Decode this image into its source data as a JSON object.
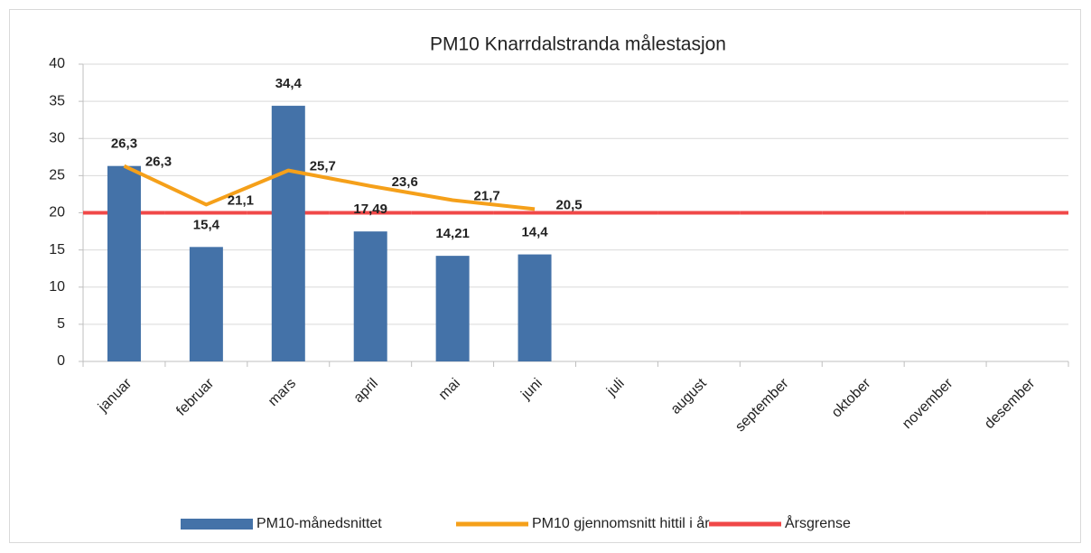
{
  "chart_data": {
    "type": "combo",
    "title": "PM10 Knarrdalstranda målestasjon",
    "categories": [
      "januar",
      "februar",
      "mars",
      "april",
      "mai",
      "juni",
      "juli",
      "august",
      "september",
      "oktober",
      "november",
      "desember"
    ],
    "ylim": [
      0,
      40
    ],
    "yticks": [
      0,
      5,
      10,
      15,
      20,
      25,
      30,
      35,
      40
    ],
    "grid": true,
    "legend": "bottom",
    "series": [
      {
        "name": "PM10-månedsnittet",
        "type": "bar",
        "color": "#4472a8",
        "label_color": "#1f4e5f",
        "values": [
          26.3,
          15.4,
          34.4,
          17.49,
          14.21,
          14.4,
          null,
          null,
          null,
          null,
          null,
          null
        ],
        "value_labels": [
          "26,3",
          "15,4",
          "34,4",
          "17,49",
          "14,21",
          "14,4",
          null,
          null,
          null,
          null,
          null,
          null
        ]
      },
      {
        "name": "PM10 gjennomsnitt hittil i år",
        "type": "line",
        "color": "#f5a01a",
        "label_color": "#f5a01a",
        "values": [
          26.3,
          21.1,
          25.7,
          23.6,
          21.7,
          20.5,
          null,
          null,
          null,
          null,
          null,
          null
        ],
        "value_labels": [
          "26,3",
          "21,1",
          "25,7",
          "23,6",
          "21,7",
          "20,5",
          null,
          null,
          null,
          null,
          null,
          null
        ]
      },
      {
        "name": "Årsgrense",
        "type": "band-line",
        "color": "#f04848",
        "values": [
          20,
          20,
          20,
          20,
          20,
          20,
          20,
          20,
          20,
          20,
          20,
          20
        ]
      }
    ]
  }
}
